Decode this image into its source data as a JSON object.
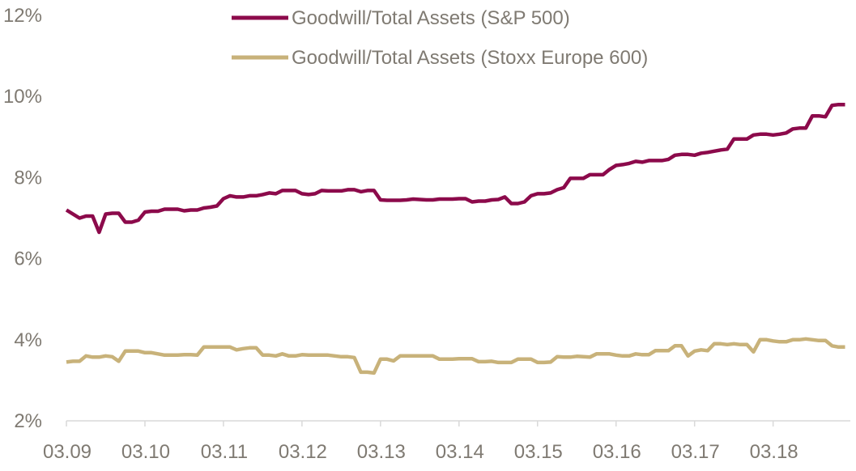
{
  "chart_data": {
    "type": "line",
    "title": "",
    "xlabel": "",
    "ylabel": "",
    "x_tick_labels": [
      "03.09",
      "03.10",
      "03.11",
      "03.12",
      "03.13",
      "03.14",
      "03.15",
      "03.16",
      "03.17",
      "03.18"
    ],
    "y_tick_labels": [
      "2%",
      "4%",
      "6%",
      "8%",
      "10%",
      "12%"
    ],
    "y_ticks": [
      2,
      4,
      6,
      8,
      10,
      12
    ],
    "ylim": [
      2,
      12
    ],
    "grid": false,
    "legend_position": "top",
    "x_start_month": "03.09",
    "series": [
      {
        "name": "Goodwill/Total Assets (S&P 500)",
        "color": "#8c0a4b",
        "points": [
          [
            "03.09",
            7.2
          ],
          [
            "04.09",
            7.1
          ],
          [
            "05.09",
            7.0
          ],
          [
            "06.09",
            7.05
          ],
          [
            "07.09",
            7.05
          ],
          [
            "08.09",
            6.65
          ],
          [
            "09.09",
            7.1
          ],
          [
            "10.09",
            7.12
          ],
          [
            "11.09",
            7.12
          ],
          [
            "12.09",
            6.9
          ],
          [
            "01.10",
            6.9
          ],
          [
            "02.10",
            6.95
          ],
          [
            "03.10",
            7.15
          ],
          [
            "04.10",
            7.17
          ],
          [
            "05.10",
            7.17
          ],
          [
            "06.10",
            7.22
          ],
          [
            "07.10",
            7.22
          ],
          [
            "08.10",
            7.22
          ],
          [
            "09.10",
            7.18
          ],
          [
            "10.10",
            7.2
          ],
          [
            "11.10",
            7.2
          ],
          [
            "12.10",
            7.25
          ],
          [
            "01.11",
            7.27
          ],
          [
            "02.11",
            7.3
          ],
          [
            "03.11",
            7.48
          ],
          [
            "04.11",
            7.55
          ],
          [
            "05.11",
            7.52
          ],
          [
            "06.11",
            7.52
          ],
          [
            "07.11",
            7.55
          ],
          [
            "08.11",
            7.55
          ],
          [
            "09.11",
            7.58
          ],
          [
            "10.11",
            7.62
          ],
          [
            "11.11",
            7.6
          ],
          [
            "12.11",
            7.68
          ],
          [
            "01.12",
            7.68
          ],
          [
            "02.12",
            7.68
          ],
          [
            "03.12",
            7.6
          ],
          [
            "04.12",
            7.58
          ],
          [
            "05.12",
            7.6
          ],
          [
            "06.12",
            7.68
          ],
          [
            "07.12",
            7.67
          ],
          [
            "08.12",
            7.67
          ],
          [
            "09.12",
            7.67
          ],
          [
            "10.12",
            7.7
          ],
          [
            "11.12",
            7.7
          ],
          [
            "12.12",
            7.65
          ],
          [
            "01.13",
            7.68
          ],
          [
            "02.13",
            7.68
          ],
          [
            "03.13",
            7.45
          ],
          [
            "04.13",
            7.44
          ],
          [
            "05.13",
            7.44
          ],
          [
            "06.13",
            7.44
          ],
          [
            "07.13",
            7.45
          ],
          [
            "08.13",
            7.47
          ],
          [
            "09.13",
            7.46
          ],
          [
            "10.13",
            7.45
          ],
          [
            "11.13",
            7.45
          ],
          [
            "12.13",
            7.47
          ],
          [
            "01.14",
            7.47
          ],
          [
            "02.14",
            7.47
          ],
          [
            "03.14",
            7.48
          ],
          [
            "04.14",
            7.48
          ],
          [
            "05.14",
            7.4
          ],
          [
            "06.14",
            7.42
          ],
          [
            "07.14",
            7.42
          ],
          [
            "08.14",
            7.45
          ],
          [
            "09.14",
            7.46
          ],
          [
            "10.14",
            7.52
          ],
          [
            "11.14",
            7.36
          ],
          [
            "12.14",
            7.36
          ],
          [
            "01.15",
            7.4
          ],
          [
            "02.15",
            7.55
          ],
          [
            "03.15",
            7.6
          ],
          [
            "04.15",
            7.6
          ],
          [
            "05.15",
            7.62
          ],
          [
            "06.15",
            7.7
          ],
          [
            "07.15",
            7.75
          ],
          [
            "08.15",
            7.98
          ],
          [
            "09.15",
            7.98
          ],
          [
            "10.15",
            7.98
          ],
          [
            "11.15",
            8.07
          ],
          [
            "12.15",
            8.07
          ],
          [
            "01.16",
            8.07
          ],
          [
            "02.16",
            8.2
          ],
          [
            "03.16",
            8.3
          ],
          [
            "04.16",
            8.32
          ],
          [
            "05.16",
            8.35
          ],
          [
            "06.16",
            8.4
          ],
          [
            "07.16",
            8.38
          ],
          [
            "08.16",
            8.42
          ],
          [
            "09.16",
            8.42
          ],
          [
            "10.16",
            8.42
          ],
          [
            "11.16",
            8.45
          ],
          [
            "12.16",
            8.55
          ],
          [
            "01.17",
            8.57
          ],
          [
            "02.17",
            8.57
          ],
          [
            "03.17",
            8.55
          ],
          [
            "04.17",
            8.6
          ],
          [
            "05.17",
            8.62
          ],
          [
            "06.17",
            8.65
          ],
          [
            "07.17",
            8.68
          ],
          [
            "08.17",
            8.7
          ],
          [
            "09.17",
            8.95
          ],
          [
            "10.17",
            8.95
          ],
          [
            "11.17",
            8.95
          ],
          [
            "12.17",
            9.05
          ],
          [
            "01.18",
            9.07
          ],
          [
            "02.18",
            9.07
          ],
          [
            "03.18",
            9.05
          ],
          [
            "04.18",
            9.07
          ],
          [
            "05.18",
            9.1
          ],
          [
            "06.18",
            9.2
          ],
          [
            "07.18",
            9.22
          ],
          [
            "08.18",
            9.22
          ],
          [
            "09.18",
            9.52
          ],
          [
            "10.18",
            9.52
          ],
          [
            "11.18",
            9.5
          ],
          [
            "12.18",
            9.78
          ],
          [
            "01.19",
            9.8
          ],
          [
            "02.19",
            9.8
          ]
        ]
      },
      {
        "name": "Goodwill/Total Assets (Stoxx Europe 600)",
        "color": "#c8b27a",
        "points": [
          [
            "03.09",
            3.45
          ],
          [
            "04.09",
            3.47
          ],
          [
            "05.09",
            3.47
          ],
          [
            "06.09",
            3.6
          ],
          [
            "07.09",
            3.57
          ],
          [
            "08.09",
            3.57
          ],
          [
            "09.09",
            3.6
          ],
          [
            "10.09",
            3.58
          ],
          [
            "11.09",
            3.47
          ],
          [
            "12.09",
            3.72
          ],
          [
            "01.10",
            3.72
          ],
          [
            "02.10",
            3.72
          ],
          [
            "03.10",
            3.68
          ],
          [
            "04.10",
            3.68
          ],
          [
            "05.10",
            3.65
          ],
          [
            "06.10",
            3.62
          ],
          [
            "07.10",
            3.62
          ],
          [
            "08.10",
            3.62
          ],
          [
            "09.10",
            3.63
          ],
          [
            "10.10",
            3.63
          ],
          [
            "11.10",
            3.62
          ],
          [
            "12.10",
            3.82
          ],
          [
            "01.11",
            3.82
          ],
          [
            "02.11",
            3.82
          ],
          [
            "03.11",
            3.82
          ],
          [
            "04.11",
            3.82
          ],
          [
            "05.11",
            3.75
          ],
          [
            "06.11",
            3.78
          ],
          [
            "07.11",
            3.8
          ],
          [
            "08.11",
            3.8
          ],
          [
            "09.11",
            3.62
          ],
          [
            "10.11",
            3.62
          ],
          [
            "11.11",
            3.6
          ],
          [
            "12.11",
            3.65
          ],
          [
            "01.12",
            3.6
          ],
          [
            "02.12",
            3.6
          ],
          [
            "03.12",
            3.63
          ],
          [
            "04.12",
            3.62
          ],
          [
            "05.12",
            3.62
          ],
          [
            "06.12",
            3.62
          ],
          [
            "07.12",
            3.62
          ],
          [
            "08.12",
            3.6
          ],
          [
            "09.12",
            3.58
          ],
          [
            "10.12",
            3.58
          ],
          [
            "11.12",
            3.56
          ],
          [
            "12.12",
            3.2
          ],
          [
            "01.13",
            3.2
          ],
          [
            "02.13",
            3.18
          ],
          [
            "03.13",
            3.52
          ],
          [
            "04.13",
            3.52
          ],
          [
            "05.13",
            3.48
          ],
          [
            "06.13",
            3.6
          ],
          [
            "07.13",
            3.6
          ],
          [
            "08.13",
            3.6
          ],
          [
            "09.13",
            3.6
          ],
          [
            "10.13",
            3.6
          ],
          [
            "11.13",
            3.6
          ],
          [
            "12.13",
            3.52
          ],
          [
            "01.14",
            3.52
          ],
          [
            "02.14",
            3.52
          ],
          [
            "03.14",
            3.53
          ],
          [
            "04.14",
            3.53
          ],
          [
            "05.14",
            3.53
          ],
          [
            "06.14",
            3.46
          ],
          [
            "07.14",
            3.46
          ],
          [
            "08.14",
            3.47
          ],
          [
            "09.14",
            3.44
          ],
          [
            "10.14",
            3.44
          ],
          [
            "11.14",
            3.44
          ],
          [
            "12.14",
            3.52
          ],
          [
            "01.15",
            3.52
          ],
          [
            "02.15",
            3.52
          ],
          [
            "03.15",
            3.44
          ],
          [
            "04.15",
            3.44
          ],
          [
            "05.15",
            3.45
          ],
          [
            "06.15",
            3.58
          ],
          [
            "07.15",
            3.57
          ],
          [
            "08.15",
            3.57
          ],
          [
            "09.15",
            3.59
          ],
          [
            "10.15",
            3.58
          ],
          [
            "11.15",
            3.57
          ],
          [
            "12.15",
            3.65
          ],
          [
            "01.16",
            3.65
          ],
          [
            "02.16",
            3.65
          ],
          [
            "03.16",
            3.62
          ],
          [
            "04.16",
            3.6
          ],
          [
            "05.16",
            3.6
          ],
          [
            "06.16",
            3.65
          ],
          [
            "07.16",
            3.63
          ],
          [
            "08.16",
            3.63
          ],
          [
            "09.16",
            3.73
          ],
          [
            "10.16",
            3.73
          ],
          [
            "11.16",
            3.73
          ],
          [
            "12.16",
            3.85
          ],
          [
            "01.17",
            3.85
          ],
          [
            "02.17",
            3.6
          ],
          [
            "03.17",
            3.72
          ],
          [
            "04.17",
            3.75
          ],
          [
            "05.17",
            3.73
          ],
          [
            "06.17",
            3.9
          ],
          [
            "07.17",
            3.9
          ],
          [
            "08.17",
            3.88
          ],
          [
            "09.17",
            3.9
          ],
          [
            "10.17",
            3.88
          ],
          [
            "11.17",
            3.88
          ],
          [
            "12.17",
            3.7
          ],
          [
            "01.18",
            4.0
          ],
          [
            "02.18",
            4.0
          ],
          [
            "03.18",
            3.97
          ],
          [
            "04.18",
            3.95
          ],
          [
            "05.18",
            3.95
          ],
          [
            "06.18",
            4.0
          ],
          [
            "07.18",
            4.0
          ],
          [
            "08.18",
            4.02
          ],
          [
            "09.18",
            4.0
          ],
          [
            "10.18",
            3.98
          ],
          [
            "11.18",
            3.98
          ],
          [
            "12.18",
            3.85
          ],
          [
            "01.19",
            3.82
          ],
          [
            "02.19",
            3.82
          ]
        ]
      }
    ]
  }
}
